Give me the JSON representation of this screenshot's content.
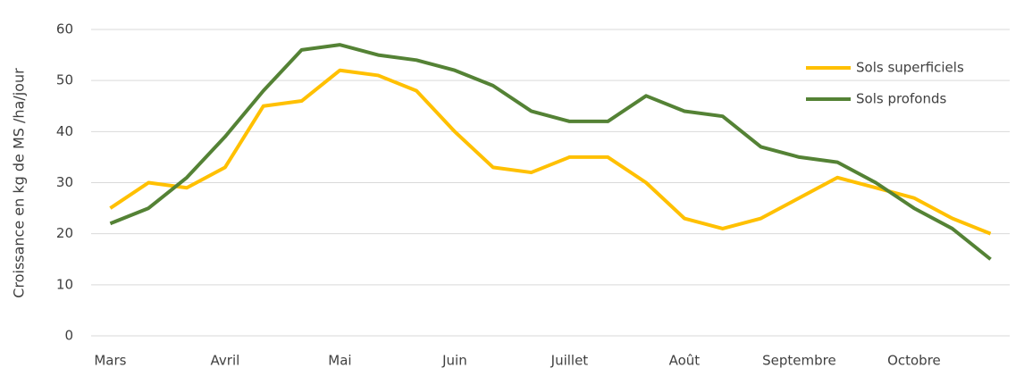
{
  "chart_data": {
    "type": "line",
    "y_label": "Croissance en kg de MS /ha/jour",
    "categories": [
      "Mars",
      null,
      null,
      "Avril",
      null,
      null,
      "Mai",
      null,
      null,
      "Juin",
      null,
      null,
      "Juillet",
      null,
      null,
      "Août",
      null,
      null,
      "Septembre",
      null,
      null,
      "Octobre",
      null,
      null
    ],
    "series": [
      {
        "name": "Sols superficiels",
        "color": "#ffc000",
        "values": [
          25,
          30,
          29,
          33,
          45,
          46,
          52,
          51,
          48,
          40,
          33,
          32,
          35,
          35,
          30,
          23,
          21,
          23,
          27,
          31,
          29,
          27,
          23,
          20
        ]
      },
      {
        "name": "Sols profonds",
        "color": "#548235",
        "values": [
          22,
          25,
          31,
          39,
          48,
          56,
          57,
          55,
          54,
          52,
          49,
          44,
          42,
          42,
          47,
          44,
          43,
          37,
          35,
          34,
          30,
          25,
          21,
          15
        ]
      }
    ],
    "ylim": [
      0,
      60
    ],
    "yticks": [
      0,
      10,
      20,
      30,
      40,
      50,
      60
    ],
    "grid": true,
    "legend": "upper right"
  }
}
